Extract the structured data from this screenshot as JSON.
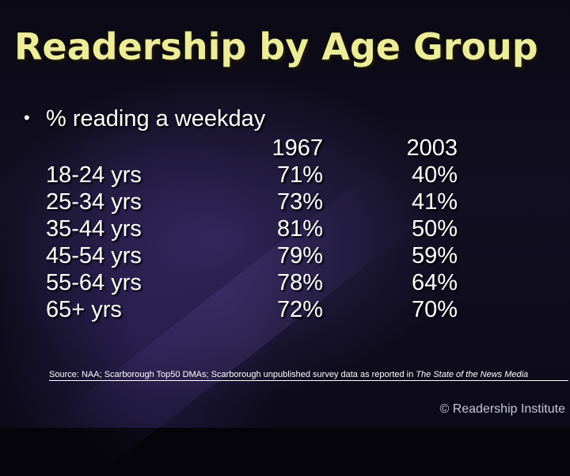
{
  "slide": {
    "title": "Readership by Age Group",
    "bullet": "% reading a weekday",
    "bullet_marker": "•",
    "columns": {
      "year1": "1967",
      "year2": "2003"
    },
    "rows": [
      {
        "age": "18-24 yrs",
        "y1967": "71%",
        "y2003": "40%"
      },
      {
        "age": "25-34 yrs",
        "y1967": "73%",
        "y2003": "41%"
      },
      {
        "age": "35-44 yrs",
        "y1967": "81%",
        "y2003": "50%"
      },
      {
        "age": "45-54 yrs",
        "y1967": "79%",
        "y2003": "59%"
      },
      {
        "age": "55-64 yrs",
        "y1967": "78%",
        "y2003": "64%"
      },
      {
        "age": "65+ yrs",
        "y1967": "72%",
        "y2003": "70%"
      }
    ],
    "source_prefix": "Source: NAA; Scarborough Top50 DMAs; Scarborough unpublished survey data as reported in ",
    "source_italic": "The State of the News Media",
    "copyright": "© Readership Institute"
  },
  "colors": {
    "title": "#ecec9a",
    "text": "#ffffff",
    "background": "#0b0914"
  }
}
